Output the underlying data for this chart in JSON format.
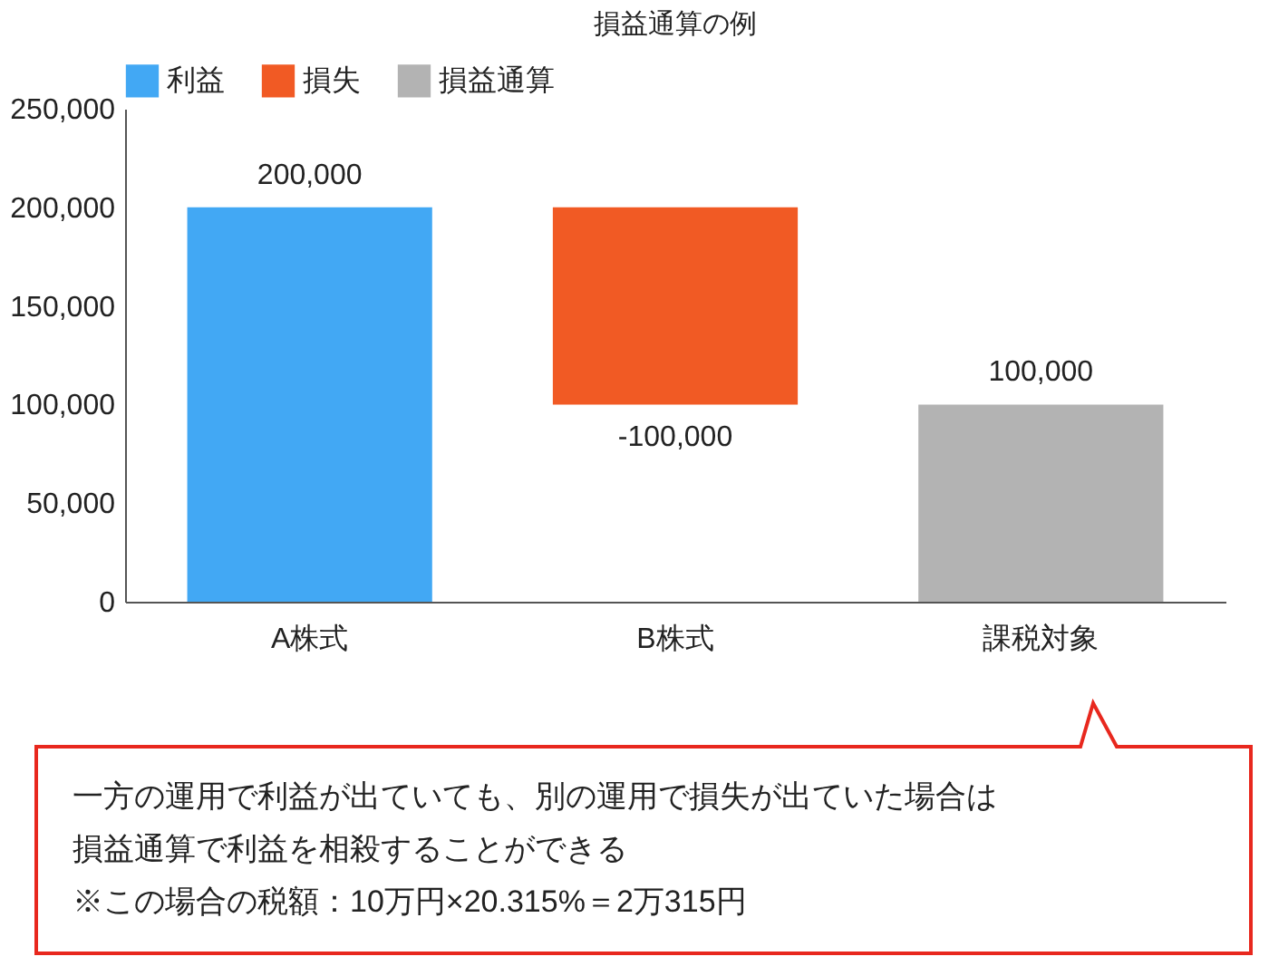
{
  "chart_data": {
    "type": "bar",
    "title": "損益通算の例",
    "categories": [
      "A株式",
      "B株式",
      "課税対象"
    ],
    "series": [
      {
        "name": "利益",
        "color": "#42a8f4",
        "values": [
          200000,
          null,
          null
        ],
        "base": [
          0,
          null,
          null
        ],
        "value_labels": [
          "200,000",
          null,
          null
        ]
      },
      {
        "name": "損失",
        "color": "#f15a24",
        "values": [
          null,
          -100000,
          null
        ],
        "base": [
          null,
          200000,
          null
        ],
        "value_labels": [
          null,
          "-100,000",
          null
        ]
      },
      {
        "name": "損益通算",
        "color": "#b3b3b3",
        "values": [
          null,
          null,
          100000
        ],
        "base": [
          null,
          null,
          0
        ],
        "value_labels": [
          null,
          null,
          "100,000"
        ]
      }
    ],
    "ylim": [
      0,
      250000
    ],
    "yticks": [
      {
        "value": 0,
        "label": "0"
      },
      {
        "value": 50000,
        "label": "50,000"
      },
      {
        "value": 100000,
        "label": "100,000"
      },
      {
        "value": 150000,
        "label": "150,000"
      },
      {
        "value": 200000,
        "label": "200,000"
      },
      {
        "value": 250000,
        "label": "250,000"
      }
    ],
    "grid": false,
    "legend": "top",
    "annotations": [
      "一方の運用で利益が出ていても、別の運用で損失が出ていた場合は",
      "損益通算で利益を相殺することができる",
      "※この場合の税額：10万円×20.315%＝2万315円"
    ]
  }
}
